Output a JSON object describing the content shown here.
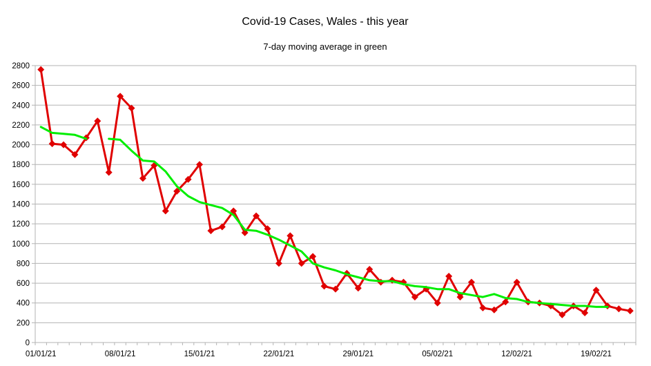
{
  "chart_data": {
    "type": "line",
    "title": "Covid-19 Cases, Wales - this year",
    "subtitle": "7-day moving average in green",
    "xlabel": "",
    "ylabel": "",
    "ylim": [
      0,
      2800
    ],
    "yticks": [
      0,
      200,
      400,
      600,
      800,
      1000,
      1200,
      1400,
      1600,
      1800,
      2000,
      2200,
      2400,
      2600,
      2800
    ],
    "x_tick_labels": [
      "01/01/21",
      "08/01/21",
      "15/01/21",
      "22/01/21",
      "29/01/21",
      "05/02/21",
      "12/02/21",
      "19/02/21"
    ],
    "x_tick_positions": [
      "01/01/21",
      "08/01/21",
      "15/01/21",
      "22/01/21",
      "29/01/21",
      "05/02/21",
      "12/02/21",
      "19/02/21"
    ],
    "x": [
      "01/01/21",
      "02/01/21",
      "03/01/21",
      "04/01/21",
      "05/01/21",
      "06/01/21",
      "07/01/21",
      "08/01/21",
      "09/01/21",
      "10/01/21",
      "11/01/21",
      "12/01/21",
      "13/01/21",
      "14/01/21",
      "15/01/21",
      "16/01/21",
      "17/01/21",
      "18/01/21",
      "19/01/21",
      "20/01/21",
      "21/01/21",
      "22/01/21",
      "23/01/21",
      "24/01/21",
      "25/01/21",
      "26/01/21",
      "27/01/21",
      "28/01/21",
      "29/01/21",
      "30/01/21",
      "31/01/21",
      "01/02/21",
      "02/02/21",
      "03/02/21",
      "04/02/21",
      "05/02/21",
      "06/02/21",
      "07/02/21",
      "08/02/21",
      "09/02/21",
      "10/02/21",
      "11/02/21",
      "12/02/21",
      "13/02/21",
      "14/02/21",
      "15/02/21",
      "16/02/21",
      "17/02/21",
      "18/02/21",
      "19/02/21",
      "20/02/21",
      "21/02/21",
      "22/02/21"
    ],
    "grid": true,
    "series": [
      {
        "color": "#e00000",
        "marker": "diamond",
        "values": [
          2760,
          2010,
          2000,
          1900,
          2070,
          2240,
          1720,
          2490,
          2370,
          1660,
          1790,
          1330,
          1530,
          1650,
          1800,
          1130,
          1170,
          1330,
          1110,
          1280,
          1150,
          800,
          1080,
          800,
          870,
          570,
          540,
          700,
          550,
          740,
          610,
          630,
          610,
          460,
          540,
          400,
          670,
          460,
          610,
          350,
          330,
          410,
          610,
          410,
          400,
          370,
          280,
          370,
          300,
          530,
          370,
          340,
          320
        ]
      },
      {
        "color": "#00ee00",
        "marker": "none",
        "values": [
          2180,
          2120,
          2110,
          2100,
          2060,
          null,
          2060,
          2050,
          1940,
          1840,
          1830,
          1730,
          1580,
          1480,
          1420,
          1390,
          1360,
          1290,
          1140,
          1130,
          1090,
          1040,
          980,
          920,
          800,
          760,
          730,
          690,
          660,
          630,
          620,
          620,
          590,
          570,
          560,
          540,
          540,
          500,
          480,
          460,
          490,
          450,
          440,
          410,
          400,
          390,
          380,
          370,
          370,
          360,
          360,
          null,
          null
        ]
      }
    ]
  }
}
